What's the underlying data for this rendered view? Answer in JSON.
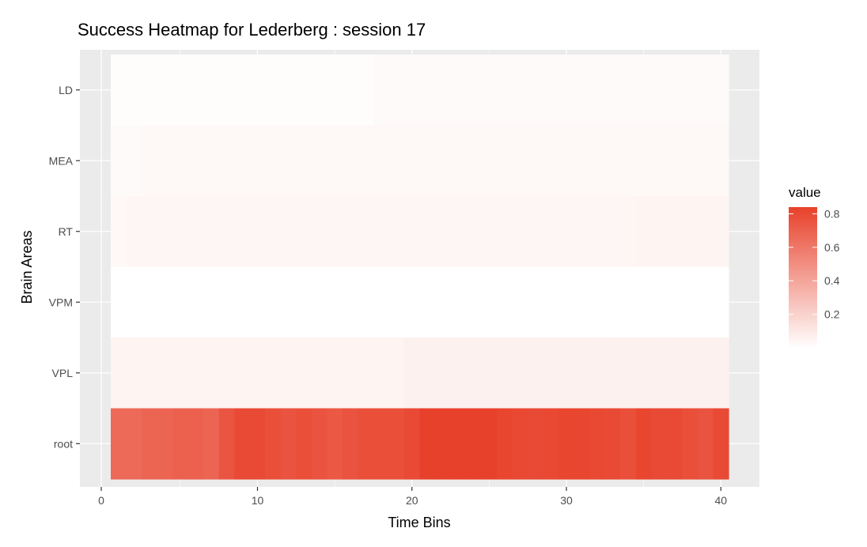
{
  "chart_data": {
    "type": "heatmap",
    "title": "Success Heatmap for Lederberg : session 17",
    "xlabel": "Time Bins",
    "ylabel": "Brain Areas",
    "xlim": [
      0,
      40.5
    ],
    "xticks": [
      0,
      10,
      20,
      30,
      40
    ],
    "x": [
      1,
      2,
      3,
      4,
      5,
      6,
      7,
      8,
      9,
      10,
      11,
      12,
      13,
      14,
      15,
      16,
      17,
      18,
      19,
      20,
      21,
      22,
      23,
      24,
      25,
      26,
      27,
      28,
      29,
      30,
      31,
      32,
      33,
      34,
      35,
      36,
      37,
      38,
      39,
      40
    ],
    "y_categories_top_to_bottom": [
      "LD",
      "MEA",
      "RT",
      "VPM",
      "VPL",
      "root"
    ],
    "series": [
      {
        "name": "LD",
        "values": [
          0.01,
          0.01,
          0.01,
          0.01,
          0.01,
          0.01,
          0.01,
          0.01,
          0.01,
          0.01,
          0.01,
          0.01,
          0.01,
          0.01,
          0.01,
          0.01,
          0.01,
          0.02,
          0.02,
          0.02,
          0.02,
          0.02,
          0.02,
          0.02,
          0.02,
          0.02,
          0.02,
          0.02,
          0.02,
          0.02,
          0.02,
          0.02,
          0.02,
          0.02,
          0.02,
          0.02,
          0.02,
          0.02,
          0.02,
          0.02
        ]
      },
      {
        "name": "MEA",
        "values": [
          0.02,
          0.02,
          0.03,
          0.03,
          0.03,
          0.03,
          0.03,
          0.03,
          0.03,
          0.03,
          0.03,
          0.03,
          0.03,
          0.03,
          0.03,
          0.03,
          0.03,
          0.03,
          0.03,
          0.03,
          0.03,
          0.03,
          0.03,
          0.03,
          0.03,
          0.03,
          0.03,
          0.03,
          0.03,
          0.03,
          0.03,
          0.03,
          0.03,
          0.03,
          0.03,
          0.03,
          0.03,
          0.03,
          0.03,
          0.03
        ]
      },
      {
        "name": "RT",
        "values": [
          0.03,
          0.04,
          0.04,
          0.04,
          0.04,
          0.04,
          0.04,
          0.04,
          0.04,
          0.04,
          0.04,
          0.04,
          0.04,
          0.04,
          0.04,
          0.04,
          0.04,
          0.04,
          0.04,
          0.04,
          0.04,
          0.04,
          0.04,
          0.04,
          0.04,
          0.04,
          0.04,
          0.04,
          0.04,
          0.04,
          0.04,
          0.04,
          0.04,
          0.04,
          0.05,
          0.05,
          0.05,
          0.05,
          0.05,
          0.05
        ]
      },
      {
        "name": "VPM",
        "values": [
          0,
          0,
          0,
          0,
          0,
          0,
          0,
          0,
          0,
          0,
          0,
          0,
          0,
          0,
          0,
          0,
          0,
          0,
          0,
          0,
          0,
          0,
          0,
          0,
          0,
          0,
          0,
          0,
          0,
          0,
          0,
          0,
          0,
          0,
          0,
          0,
          0,
          0,
          0,
          0
        ]
      },
      {
        "name": "VPL",
        "values": [
          0.05,
          0.05,
          0.05,
          0.05,
          0.05,
          0.05,
          0.05,
          0.05,
          0.05,
          0.05,
          0.05,
          0.05,
          0.05,
          0.05,
          0.05,
          0.05,
          0.05,
          0.05,
          0.05,
          0.06,
          0.06,
          0.06,
          0.06,
          0.06,
          0.06,
          0.06,
          0.06,
          0.06,
          0.06,
          0.06,
          0.06,
          0.06,
          0.06,
          0.06,
          0.06,
          0.06,
          0.06,
          0.06,
          0.06,
          0.06
        ]
      },
      {
        "name": "root",
        "values": [
          0.66,
          0.66,
          0.68,
          0.68,
          0.7,
          0.7,
          0.68,
          0.75,
          0.8,
          0.8,
          0.78,
          0.76,
          0.78,
          0.76,
          0.74,
          0.76,
          0.78,
          0.78,
          0.78,
          0.8,
          0.84,
          0.84,
          0.84,
          0.84,
          0.84,
          0.82,
          0.81,
          0.8,
          0.81,
          0.82,
          0.82,
          0.81,
          0.8,
          0.78,
          0.82,
          0.8,
          0.8,
          0.78,
          0.76,
          0.8
        ]
      }
    ],
    "legend": {
      "title": "value",
      "ticks": [
        0.2,
        0.4,
        0.6,
        0.8
      ],
      "min": 0,
      "max": 0.84,
      "low_color": "#ffffff",
      "high_color": "#e8412b"
    },
    "legend_placement": "right",
    "grid": true,
    "panel_background": "#ebebeb",
    "gridline_color": "#ffffff"
  }
}
